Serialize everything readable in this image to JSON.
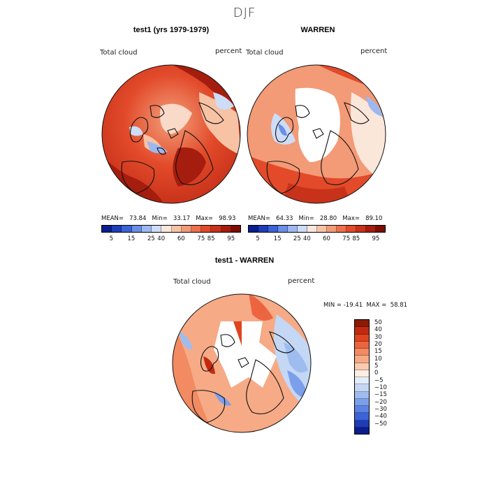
{
  "season": "DJF",
  "panels": [
    {
      "title": "test1 (yrs 1979-1979)",
      "variable": "Total cloud",
      "units": "percent",
      "stats": "MEAN=   73.84   Min=   33.17   Max=   98.93",
      "palette": [
        "#0b1e8c",
        "#1f3cb8",
        "#3a63d6",
        "#6b8fe6",
        "#9db8f0",
        "#cddcf7",
        "#fbe6da",
        "#f8c3a5",
        "#f39a76",
        "#ee6f4c",
        "#e24a2a",
        "#c8321a",
        "#a41d0e",
        "#7a0e05"
      ],
      "colorbar_ticks": [
        "5",
        "15",
        "25",
        "40",
        "60",
        "75",
        "85",
        "95"
      ],
      "dominant": "warm"
    },
    {
      "title": "WARREN",
      "variable": "Total cloud",
      "units": "percent",
      "stats": "MEAN=   64.33   Min=   28.80   Max=   89.10",
      "palette": [
        "#0b1e8c",
        "#1f3cb8",
        "#3a63d6",
        "#6b8fe6",
        "#9db8f0",
        "#cddcf7",
        "#fbe6da",
        "#f8c3a5",
        "#f39a76",
        "#ee6f4c",
        "#e24a2a",
        "#c8321a",
        "#a41d0e",
        "#7a0e05"
      ],
      "colorbar_ticks": [
        "5",
        "15",
        "25",
        "40",
        "60",
        "75",
        "85",
        "95"
      ],
      "dominant": "mixed"
    }
  ],
  "diff": {
    "title": "test1 - WARREN",
    "variable": "Total cloud",
    "units": "percent",
    "stats": "MIN = -19.41  MAX =  58.81",
    "palette": [
      "#8b1a06",
      "#c22a10",
      "#e0441f",
      "#ec6540",
      "#f28a62",
      "#f6aa86",
      "#f9cbb0",
      "#fdeee4",
      "#e3ecfa",
      "#c4d7f4",
      "#9fbcef",
      "#7b9fea",
      "#5a83e3",
      "#3c63d8",
      "#1f3cb8",
      "#0b1e8c"
    ],
    "colorbar_labels": [
      "50",
      "40",
      "30",
      "20",
      "15",
      "10",
      "5",
      "0",
      "−5",
      "−10",
      "−15",
      "−20",
      "−30",
      "−40",
      "−50"
    ]
  }
}
